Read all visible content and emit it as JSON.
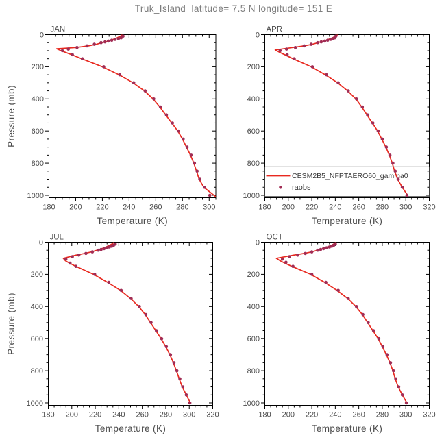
{
  "title": "Truk_Island  latitude= 7.5 N longitude= 151 E",
  "colors": {
    "model_line": "#e8291f",
    "raobs_dot": "#a12d55",
    "frame": "#000000",
    "title_text": "#7d7d7d",
    "label_text": "#4c4c4c",
    "legend_text": "#3a3a3a"
  },
  "legend": {
    "panel": "APR",
    "entries": [
      {
        "label": "CESM2B5_NFPTAERO60_gamma0",
        "marker": "line"
      },
      {
        "label": "raobs",
        "marker": "dot"
      }
    ]
  },
  "chart_data": {
    "type": "line",
    "title": "Truk_Island  latitude= 7.5 N longitude= 151 E",
    "xlabel": "Temperature (K)",
    "ylabel": "Pressure (mb)",
    "point_format": "[pressure_mb, temperature_K]",
    "y_axis": {
      "range": [
        0,
        1015
      ],
      "ticks": [
        0,
        200,
        400,
        600,
        800,
        1000
      ],
      "minor_step": 50,
      "orientation": "pressure increases downward"
    },
    "x_minor_step": 5,
    "series_names": [
      "CESM2B5_NFPTAERO60_gamma0",
      "raobs"
    ],
    "panels": [
      {
        "label": "JAN",
        "x_range": [
          180,
          305
        ],
        "x_ticks": [
          180,
          200,
          220,
          240,
          260,
          280,
          300
        ],
        "has_legend": false,
        "line": [
          [
            0,
            235
          ],
          [
            10,
            233.5
          ],
          [
            20,
            231
          ],
          [
            30,
            228
          ],
          [
            40,
            224.5
          ],
          [
            50,
            220
          ],
          [
            60,
            215.5
          ],
          [
            70,
            209.5
          ],
          [
            80,
            200
          ],
          [
            88,
            185.8
          ],
          [
            100,
            189
          ],
          [
            125,
            197
          ],
          [
            150,
            204.5
          ],
          [
            200,
            220
          ],
          [
            250,
            232.5
          ],
          [
            300,
            243
          ],
          [
            350,
            251.5
          ],
          [
            400,
            258
          ],
          [
            450,
            263
          ],
          [
            500,
            267.5
          ],
          [
            550,
            272
          ],
          [
            600,
            276.5
          ],
          [
            650,
            280
          ],
          [
            700,
            283
          ],
          [
            750,
            286
          ],
          [
            800,
            288.5
          ],
          [
            850,
            290.5
          ],
          [
            900,
            292.5
          ],
          [
            950,
            296
          ],
          [
            990,
            302
          ],
          [
            1015,
            306
          ]
        ],
        "dots": [
          [
            10,
            235.5
          ],
          [
            20,
            234
          ],
          [
            25,
            232
          ],
          [
            30,
            229.5
          ],
          [
            35,
            227
          ],
          [
            40,
            224.5
          ],
          [
            45,
            222
          ],
          [
            50,
            219
          ],
          [
            60,
            214
          ],
          [
            70,
            208.5
          ],
          [
            80,
            201
          ],
          [
            90,
            194.5
          ],
          [
            100,
            190
          ],
          [
            125,
            197.5
          ],
          [
            150,
            205
          ],
          [
            200,
            221
          ],
          [
            250,
            233
          ],
          [
            300,
            243.5
          ],
          [
            350,
            252
          ],
          [
            400,
            258.5
          ],
          [
            450,
            263.5
          ],
          [
            500,
            268
          ],
          [
            550,
            272.5
          ],
          [
            600,
            277
          ],
          [
            650,
            280.5
          ],
          [
            700,
            283.5
          ],
          [
            750,
            286.5
          ],
          [
            800,
            289
          ],
          [
            850,
            291
          ],
          [
            900,
            293
          ],
          [
            950,
            296.5
          ],
          [
            1000,
            300.5
          ]
        ]
      },
      {
        "label": "APR",
        "x_range": [
          180,
          320
        ],
        "x_ticks": [
          180,
          200,
          220,
          240,
          260,
          280,
          300,
          320
        ],
        "has_legend": true,
        "line": [
          [
            0,
            242
          ],
          [
            10,
            240
          ],
          [
            20,
            237.5
          ],
          [
            30,
            234
          ],
          [
            40,
            230
          ],
          [
            50,
            225.5
          ],
          [
            60,
            220.5
          ],
          [
            70,
            213.5
          ],
          [
            80,
            203.5
          ],
          [
            95,
            188.8
          ],
          [
            110,
            192.5
          ],
          [
            125,
            197
          ],
          [
            150,
            204
          ],
          [
            200,
            219.5
          ],
          [
            250,
            231.5
          ],
          [
            300,
            242
          ],
          [
            350,
            250.5
          ],
          [
            400,
            257.5
          ],
          [
            450,
            262.5
          ],
          [
            500,
            267
          ],
          [
            550,
            271.5
          ],
          [
            600,
            276
          ],
          [
            650,
            279.5
          ],
          [
            700,
            283
          ],
          [
            750,
            286
          ],
          [
            800,
            288.5
          ],
          [
            850,
            290.5
          ],
          [
            900,
            293
          ],
          [
            950,
            297
          ],
          [
            1000,
            301.5
          ]
        ],
        "dots": [
          [
            10,
            240.5
          ],
          [
            20,
            239.5
          ],
          [
            25,
            238
          ],
          [
            30,
            236
          ],
          [
            35,
            233.5
          ],
          [
            40,
            231
          ],
          [
            45,
            228
          ],
          [
            50,
            225
          ],
          [
            60,
            219.5
          ],
          [
            70,
            213.5
          ],
          [
            80,
            206
          ],
          [
            90,
            198.5
          ],
          [
            100,
            193
          ],
          [
            125,
            199
          ],
          [
            150,
            205
          ],
          [
            200,
            220.5
          ],
          [
            250,
            232.5
          ],
          [
            300,
            242.5
          ],
          [
            350,
            251
          ],
          [
            400,
            258
          ],
          [
            450,
            263
          ],
          [
            500,
            267.5
          ],
          [
            550,
            272
          ],
          [
            600,
            276.5
          ],
          [
            650,
            280
          ],
          [
            700,
            283.5
          ],
          [
            750,
            286.5
          ],
          [
            800,
            289
          ],
          [
            850,
            291
          ],
          [
            900,
            293.5
          ],
          [
            950,
            297
          ],
          [
            1000,
            301
          ]
        ]
      },
      {
        "label": "JUL",
        "x_range": [
          180,
          320
        ],
        "x_ticks": [
          180,
          200,
          220,
          240,
          260,
          280,
          300,
          320
        ],
        "has_legend": false,
        "line": [
          [
            0,
            236
          ],
          [
            10,
            234.5
          ],
          [
            20,
            232
          ],
          [
            30,
            229
          ],
          [
            40,
            225.5
          ],
          [
            50,
            221.5
          ],
          [
            60,
            217
          ],
          [
            70,
            211
          ],
          [
            80,
            203.5
          ],
          [
            100,
            192.8
          ],
          [
            115,
            194.5
          ],
          [
            130,
            198
          ],
          [
            150,
            203.5
          ],
          [
            200,
            218.5
          ],
          [
            250,
            230.5
          ],
          [
            300,
            241.5
          ],
          [
            350,
            250
          ],
          [
            400,
            257
          ],
          [
            450,
            262.5
          ],
          [
            500,
            267
          ],
          [
            550,
            271.5
          ],
          [
            600,
            276
          ],
          [
            650,
            280
          ],
          [
            700,
            283.5
          ],
          [
            750,
            286.5
          ],
          [
            800,
            289
          ],
          [
            850,
            291.5
          ],
          [
            900,
            294
          ],
          [
            950,
            297.5
          ],
          [
            1000,
            301
          ]
        ],
        "dots": [
          [
            12,
            237
          ],
          [
            20,
            235.5
          ],
          [
            25,
            234
          ],
          [
            30,
            232
          ],
          [
            35,
            230
          ],
          [
            40,
            227.5
          ],
          [
            45,
            225
          ],
          [
            50,
            222.5
          ],
          [
            60,
            217.5
          ],
          [
            70,
            212
          ],
          [
            80,
            206
          ],
          [
            90,
            200.5
          ],
          [
            105,
            195
          ],
          [
            130,
            198.5
          ],
          [
            150,
            203.5
          ],
          [
            200,
            219.5
          ],
          [
            250,
            231.5
          ],
          [
            300,
            242
          ],
          [
            350,
            250.5
          ],
          [
            400,
            257.5
          ],
          [
            450,
            263
          ],
          [
            500,
            267.5
          ],
          [
            550,
            272
          ],
          [
            600,
            276.5
          ],
          [
            650,
            280.5
          ],
          [
            700,
            284
          ],
          [
            750,
            287
          ],
          [
            800,
            289.5
          ],
          [
            850,
            292
          ],
          [
            900,
            294.5
          ],
          [
            950,
            297.5
          ],
          [
            1000,
            300.5
          ]
        ]
      },
      {
        "label": "OCT",
        "x_range": [
          180,
          320
        ],
        "x_ticks": [
          180,
          200,
          220,
          240,
          260,
          280,
          300,
          320
        ],
        "has_legend": false,
        "line": [
          [
            0,
            240.5
          ],
          [
            10,
            239
          ],
          [
            20,
            236.5
          ],
          [
            30,
            233
          ],
          [
            40,
            229
          ],
          [
            50,
            225
          ],
          [
            60,
            220
          ],
          [
            70,
            213.5
          ],
          [
            80,
            204.5
          ],
          [
            100,
            189.8
          ],
          [
            115,
            193
          ],
          [
            130,
            197
          ],
          [
            150,
            203
          ],
          [
            200,
            219
          ],
          [
            250,
            231
          ],
          [
            300,
            241.5
          ],
          [
            350,
            250.5
          ],
          [
            400,
            257.5
          ],
          [
            450,
            263
          ],
          [
            500,
            267.5
          ],
          [
            550,
            272
          ],
          [
            600,
            276.5
          ],
          [
            650,
            280
          ],
          [
            700,
            283.5
          ],
          [
            750,
            286.5
          ],
          [
            800,
            289
          ],
          [
            850,
            291
          ],
          [
            900,
            293.5
          ],
          [
            950,
            297
          ],
          [
            1000,
            301
          ]
        ],
        "dots": [
          [
            12,
            240
          ],
          [
            20,
            238.5
          ],
          [
            25,
            237
          ],
          [
            30,
            235
          ],
          [
            35,
            232.5
          ],
          [
            40,
            230
          ],
          [
            45,
            227.5
          ],
          [
            50,
            225
          ],
          [
            60,
            220
          ],
          [
            70,
            214.5
          ],
          [
            80,
            208
          ],
          [
            90,
            201
          ],
          [
            105,
            195
          ],
          [
            125,
            198
          ],
          [
            150,
            204
          ],
          [
            200,
            220
          ],
          [
            250,
            232
          ],
          [
            300,
            242.5
          ],
          [
            350,
            251
          ],
          [
            400,
            258
          ],
          [
            450,
            263.5
          ],
          [
            500,
            268
          ],
          [
            550,
            272.5
          ],
          [
            600,
            277
          ],
          [
            650,
            280.5
          ],
          [
            700,
            284
          ],
          [
            750,
            287
          ],
          [
            800,
            289.5
          ],
          [
            850,
            291.5
          ],
          [
            900,
            294
          ],
          [
            950,
            297
          ],
          [
            1000,
            300.5
          ]
        ]
      }
    ]
  }
}
